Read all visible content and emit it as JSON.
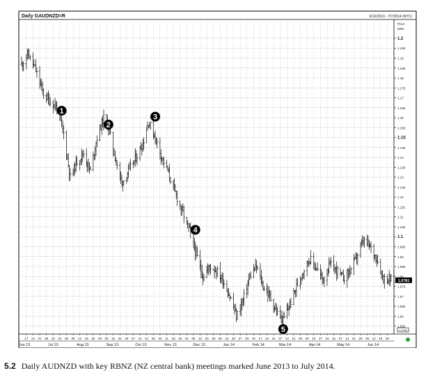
{
  "chart_data": {
    "type": "ohlc",
    "title": "Daily GAUDNZD=R",
    "date_range": "6/12/2013 - 7/7/2014 (NYC)",
    "y_axis_header": [
      "Price",
      "NZD"
    ],
    "ylim": [
      1.051,
      1.207
    ],
    "y_ticks": [
      "1.2",
      "1.195",
      "1.19",
      "1.185",
      "1.18",
      "1.175",
      "1.17",
      "1.165",
      "1.16",
      "1.155",
      "1.15",
      "1.145",
      "1.14",
      "1.135",
      "1.13",
      "1.125",
      "1.12",
      "1.115",
      "1.11",
      "1.105",
      "1.1",
      "1.095",
      "1.09",
      "1.085",
      "1.08",
      "1.075",
      "1.07",
      "1.065",
      "1.06",
      "1.055"
    ],
    "y_tick_values": [
      1.2,
      1.195,
      1.19,
      1.185,
      1.18,
      1.175,
      1.17,
      1.165,
      1.16,
      1.155,
      1.15,
      1.145,
      1.14,
      1.135,
      1.13,
      1.125,
      1.12,
      1.115,
      1.11,
      1.105,
      1.1,
      1.095,
      1.09,
      1.085,
      1.08,
      1.075,
      1.07,
      1.065,
      1.06,
      1.055
    ],
    "last_price_label": "1.0781",
    "last_price_value": 1.0781,
    "bottom_axis_box": "1.0781",
    "grid": true,
    "x_start": "2013-06-12",
    "x_end": "2014-07-07",
    "x_day_ticks": [
      "17",
      "24",
      "01",
      "08",
      "15",
      "22",
      "29",
      "05",
      "12",
      "19",
      "26",
      "02",
      "09",
      "16",
      "23",
      "30",
      "07",
      "14",
      "21",
      "28",
      "04",
      "11",
      "18",
      "25",
      "02",
      "09",
      "16",
      "23",
      "30",
      "06",
      "13",
      "20",
      "27",
      "03",
      "10",
      "17",
      "24",
      "31",
      "07",
      "14",
      "21",
      "28",
      "03",
      "10",
      "17",
      "24",
      "31",
      "07",
      "14",
      "21",
      "28",
      "05",
      "12",
      "19",
      "26",
      "02",
      "09",
      "16",
      "23",
      "30"
    ],
    "months": [
      {
        "label": "Jun 13",
        "date": "2013-06-15"
      },
      {
        "label": "Jul 13",
        "date": "2013-07-15"
      },
      {
        "label": "Aug 13",
        "date": "2013-08-15"
      },
      {
        "label": "Sep 13",
        "date": "2013-09-15"
      },
      {
        "label": "Oct 13",
        "date": "2013-10-15"
      },
      {
        "label": "Nov 13",
        "date": "2013-11-15"
      },
      {
        "label": "Dec 13",
        "date": "2013-12-15"
      },
      {
        "label": "Jan 14",
        "date": "2014-01-15"
      },
      {
        "label": "Feb 14",
        "date": "2014-02-15"
      },
      {
        "label": "Mar 14",
        "date": "2014-03-15"
      },
      {
        "label": "Apr 14",
        "date": "2014-04-15"
      },
      {
        "label": "May 14",
        "date": "2014-05-15"
      },
      {
        "label": "Jun 14",
        "date": "2014-06-15"
      }
    ],
    "anchors": [
      [
        "2013-06-12",
        1.187
      ],
      [
        "2013-06-19",
        1.192
      ],
      [
        "2013-06-26",
        1.185
      ],
      [
        "2013-07-05",
        1.172
      ],
      [
        "2013-07-12",
        1.168
      ],
      [
        "2013-07-19",
        1.165
      ],
      [
        "2013-07-26",
        1.152
      ],
      [
        "2013-08-02",
        1.13
      ],
      [
        "2013-08-09",
        1.138
      ],
      [
        "2013-08-16",
        1.142
      ],
      [
        "2013-08-23",
        1.133
      ],
      [
        "2013-08-30",
        1.15
      ],
      [
        "2013-09-06",
        1.16
      ],
      [
        "2013-09-11",
        1.155
      ],
      [
        "2013-09-18",
        1.14
      ],
      [
        "2013-09-25",
        1.127
      ],
      [
        "2013-10-02",
        1.133
      ],
      [
        "2013-10-10",
        1.14
      ],
      [
        "2013-10-17",
        1.147
      ],
      [
        "2013-10-23",
        1.158
      ],
      [
        "2013-10-30",
        1.15
      ],
      [
        "2013-11-06",
        1.14
      ],
      [
        "2013-11-13",
        1.132
      ],
      [
        "2013-11-20",
        1.122
      ],
      [
        "2013-11-27",
        1.113
      ],
      [
        "2013-12-05",
        1.103
      ],
      [
        "2013-12-12",
        1.091
      ],
      [
        "2013-12-19",
        1.08
      ],
      [
        "2013-12-26",
        1.085
      ],
      [
        "2014-01-02",
        1.083
      ],
      [
        "2014-01-09",
        1.078
      ],
      [
        "2014-01-16",
        1.07
      ],
      [
        "2014-01-23",
        1.06
      ],
      [
        "2014-01-30",
        1.068
      ],
      [
        "2014-02-06",
        1.08
      ],
      [
        "2014-02-13",
        1.085
      ],
      [
        "2014-02-20",
        1.075
      ],
      [
        "2014-02-27",
        1.07
      ],
      [
        "2014-03-06",
        1.062
      ],
      [
        "2014-03-13",
        1.058
      ],
      [
        "2014-03-20",
        1.066
      ],
      [
        "2014-03-27",
        1.075
      ],
      [
        "2014-04-03",
        1.083
      ],
      [
        "2014-04-10",
        1.089
      ],
      [
        "2014-04-17",
        1.084
      ],
      [
        "2014-04-24",
        1.078
      ],
      [
        "2014-05-01",
        1.086
      ],
      [
        "2014-05-08",
        1.083
      ],
      [
        "2014-05-15",
        1.079
      ],
      [
        "2014-05-22",
        1.083
      ],
      [
        "2014-05-29",
        1.09
      ],
      [
        "2014-06-05",
        1.098
      ],
      [
        "2014-06-12",
        1.095
      ],
      [
        "2014-06-19",
        1.089
      ],
      [
        "2014-06-26",
        1.079
      ],
      [
        "2014-07-07",
        1.078
      ]
    ],
    "markers": [
      {
        "label": "1",
        "date": "2013-07-24",
        "value": 1.1635
      },
      {
        "label": "2",
        "date": "2013-09-11",
        "value": 1.1565
      },
      {
        "label": "3",
        "date": "2013-10-30",
        "value": 1.1605
      },
      {
        "label": "4",
        "date": "2013-12-11",
        "value": 1.1035
      },
      {
        "label": "5",
        "date": "2014-03-13",
        "value": 1.0535
      }
    ]
  },
  "caption": {
    "number": "5.2",
    "text": "Daily AUDNZD with key RBNZ (NZ central bank) meetings marked June 2013 to July 2014."
  }
}
